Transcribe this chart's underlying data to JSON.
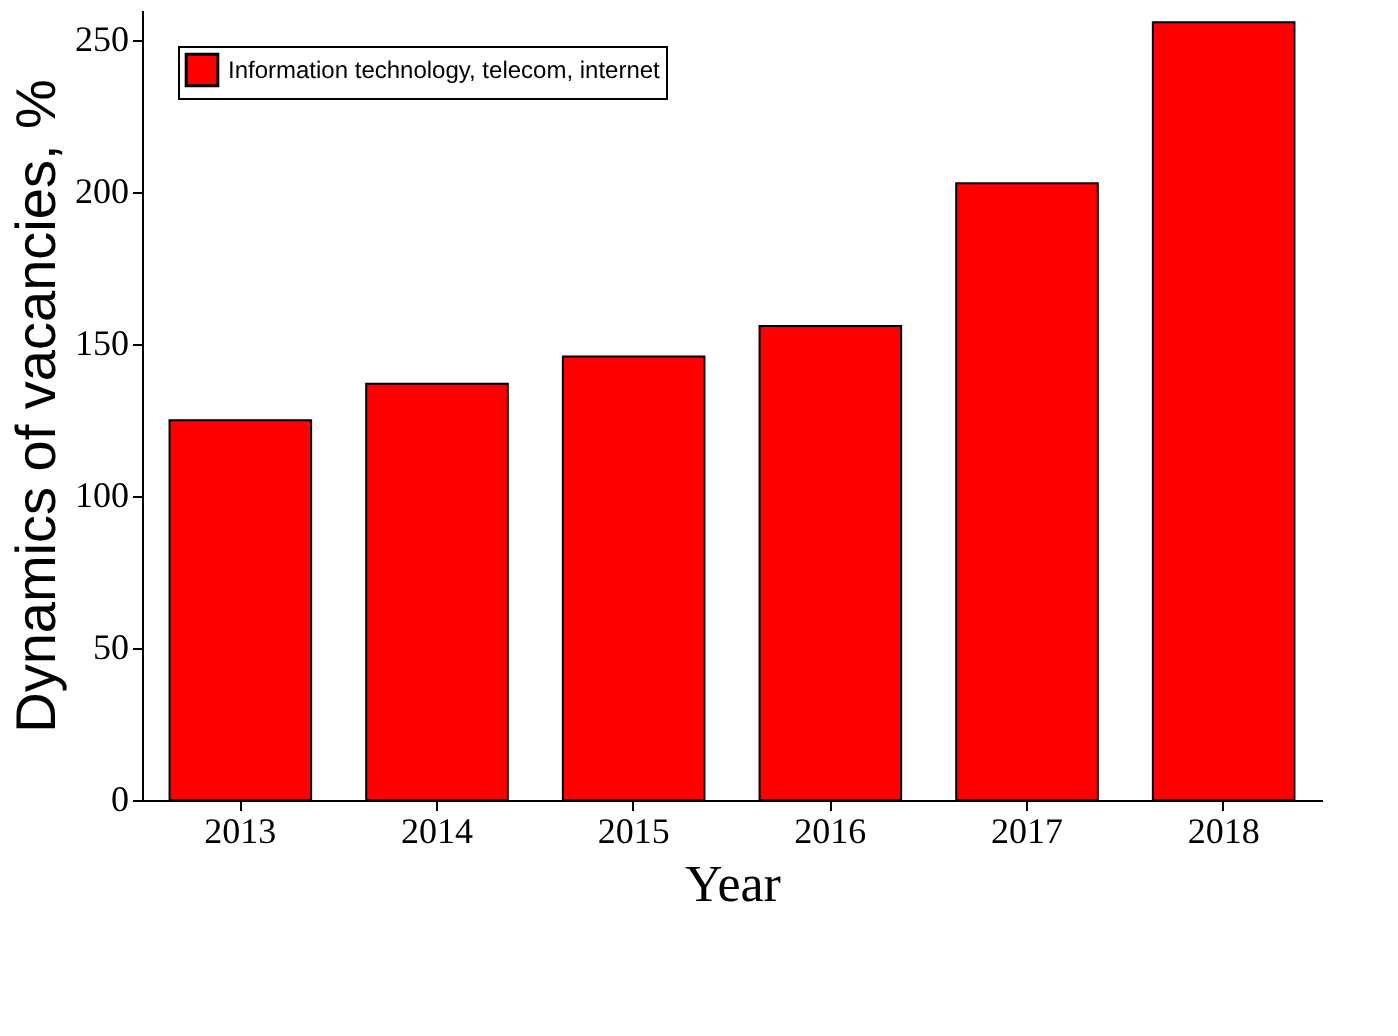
{
  "chart_data": {
    "type": "bar",
    "xlabel": "Year",
    "ylabel": "Dynamics of vacancies, %",
    "categories": [
      "2013",
      "2014",
      "2015",
      "2016",
      "2017",
      "2018"
    ],
    "series": [
      {
        "name": "Information technology, telecom, internet",
        "color": "#ff0000",
        "values": [
          125,
          137,
          146,
          156,
          203,
          256
        ]
      }
    ],
    "ylim": [
      0,
      260
    ],
    "yticks": [
      0,
      50,
      100,
      150,
      200,
      250
    ],
    "grid": false,
    "legend": "top left"
  }
}
